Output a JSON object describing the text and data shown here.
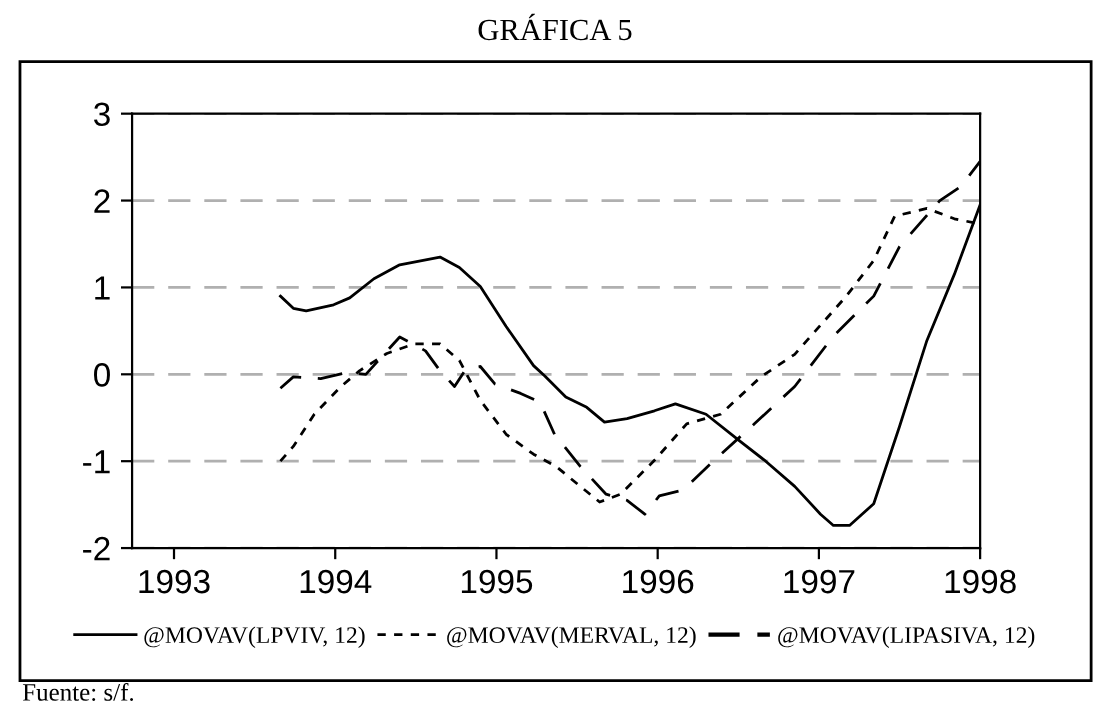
{
  "chart_data": {
    "type": "line",
    "title": "GRÁFICA 5",
    "xlim": [
      1992.74,
      1998.0
    ],
    "xticks": [
      1993,
      1994,
      1995,
      1996,
      1997,
      1998
    ],
    "ylim": [
      -2,
      3
    ],
    "yticks": [
      -2,
      -1,
      0,
      1,
      2,
      3
    ],
    "grid": "y",
    "legend": "bottom",
    "annotations": [
      "Fuente: s/f."
    ],
    "series": [
      {
        "name": "@MOVAV(LPVIV, 12)",
        "color": "#000000",
        "line_style": "solid",
        "x": [
          1993.66,
          1993.74,
          1993.82,
          1993.99,
          1994.09,
          1994.24,
          1994.4,
          1994.65,
          1994.77,
          1994.9,
          1995.06,
          1995.23,
          1995.3,
          1995.43,
          1995.56,
          1995.67,
          1995.81,
          1995.98,
          1996.11,
          1996.3,
          1996.51,
          1996.67,
          1996.85,
          1997.01,
          1997.09,
          1997.19,
          1997.34,
          1997.5,
          1997.67,
          1997.84,
          1998.0
        ],
        "values": [
          0.9,
          0.76,
          0.73,
          0.8,
          0.88,
          1.1,
          1.26,
          1.35,
          1.23,
          1.01,
          0.55,
          0.1,
          -0.02,
          -0.26,
          -0.38,
          -0.55,
          -0.51,
          -0.42,
          -0.34,
          -0.46,
          -0.77,
          -1.0,
          -1.29,
          -1.61,
          -1.74,
          -1.74,
          -1.49,
          -0.6,
          0.39,
          1.15,
          1.95
        ]
      },
      {
        "name": "@MOVAV(MERVAL, 12)",
        "color": "#000000",
        "line_style": "dotted",
        "x": [
          1993.66,
          1993.74,
          1993.87,
          1994.03,
          1994.15,
          1994.32,
          1994.49,
          1994.65,
          1994.77,
          1994.9,
          1995.06,
          1995.23,
          1995.37,
          1995.52,
          1995.64,
          1995.77,
          1995.98,
          1996.18,
          1996.39,
          1996.64,
          1996.85,
          1997.17,
          1997.34,
          1997.47,
          1997.67,
          1997.84,
          1998.0
        ],
        "values": [
          -1.0,
          -0.83,
          -0.46,
          -0.15,
          0.04,
          0.24,
          0.35,
          0.35,
          0.16,
          -0.3,
          -0.69,
          -0.92,
          -1.06,
          -1.29,
          -1.47,
          -1.38,
          -0.99,
          -0.57,
          -0.46,
          -0.03,
          0.23,
          0.9,
          1.31,
          1.82,
          1.91,
          1.79,
          1.73
        ]
      },
      {
        "name": "@MOVAV(LIPASIVA, 12)",
        "color": "#000000",
        "line_style": "dashed",
        "x": [
          1993.66,
          1993.74,
          1993.91,
          1994.07,
          1994.19,
          1994.4,
          1994.56,
          1994.65,
          1994.74,
          1994.81,
          1994.9,
          1994.99,
          1995.15,
          1995.27,
          1995.36,
          1995.52,
          1995.68,
          1995.81,
          1995.92,
          1996.01,
          1996.16,
          1996.35,
          1996.6,
          1996.85,
          1997.09,
          1997.34,
          1997.5,
          1997.75,
          1997.88,
          1998.0
        ],
        "values": [
          -0.16,
          -0.03,
          -0.05,
          0.02,
          0.0,
          0.43,
          0.27,
          0.04,
          -0.14,
          0.06,
          0.09,
          -0.11,
          -0.22,
          -0.32,
          -0.69,
          -1.06,
          -1.38,
          -1.45,
          -1.61,
          -1.4,
          -1.33,
          -0.99,
          -0.57,
          -0.14,
          0.44,
          0.9,
          1.47,
          2.0,
          2.16,
          2.45
        ]
      }
    ]
  }
}
